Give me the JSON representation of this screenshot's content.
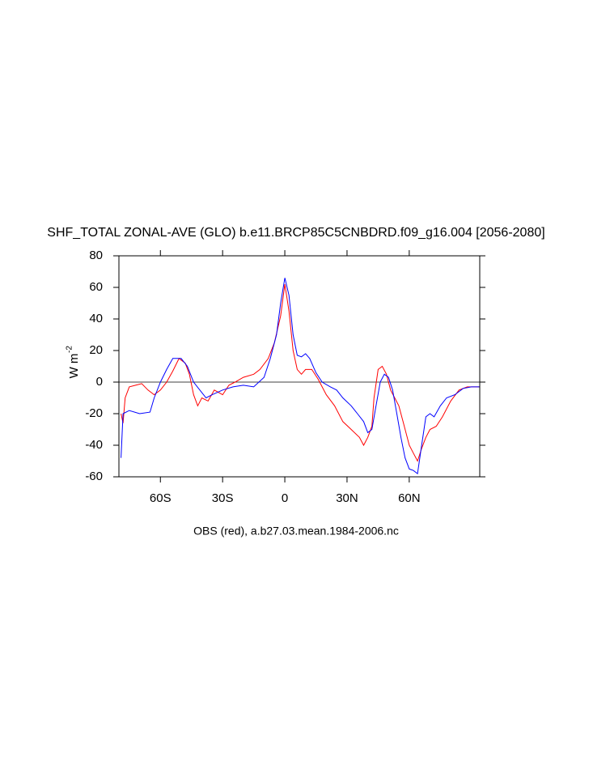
{
  "chart_data": {
    "type": "line",
    "title": "SHF_TOTAL ZONAL-AVE (GLO) b.e11.BRCP85C5CNBDRD.f09_g16.004 [2056-2080]",
    "subtitle": "OBS (red), a.b27.03.mean.1984-2006.nc",
    "y_label": {
      "text": "W m",
      "superscript": "-2"
    },
    "xlim": [
      -80,
      94
    ],
    "xticks": [
      {
        "value": -60,
        "label": "60S"
      },
      {
        "value": -30,
        "label": "30S"
      },
      0,
      {
        "value": 30,
        "label": "30N"
      },
      {
        "value": 60,
        "label": "60N"
      }
    ],
    "ylim": [
      -60,
      80
    ],
    "yticks": [
      -60,
      -40,
      -20,
      0,
      20,
      40,
      60,
      80
    ],
    "zero_line": true,
    "series": [
      {
        "color": "#ff0000",
        "x": [
          -79,
          -78,
          -77,
          -75,
          -72,
          -69,
          -66,
          -63,
          -60,
          -57,
          -54,
          -51,
          -48,
          -46,
          -44,
          -42,
          -40,
          -37,
          -34,
          -30,
          -27,
          -24,
          -20,
          -15,
          -12,
          -8,
          -5,
          -2,
          0,
          2,
          4,
          6,
          8,
          10,
          13,
          16,
          20,
          24,
          28,
          32,
          36,
          38,
          40,
          42,
          43,
          45,
          47,
          49,
          51,
          53,
          55,
          57,
          60,
          62,
          64,
          66,
          68,
          70,
          73,
          76,
          80,
          84,
          88,
          94
        ],
        "values": [
          -20,
          -26,
          -10,
          -3,
          -2,
          -1,
          -5,
          -8,
          -5,
          0,
          7,
          15,
          12,
          5,
          -8,
          -15,
          -10,
          -12,
          -5,
          -8,
          -2,
          0,
          3,
          5,
          8,
          15,
          25,
          42,
          62,
          45,
          20,
          8,
          5,
          8,
          8,
          2,
          -8,
          -15,
          -25,
          -30,
          -35,
          -40,
          -35,
          -28,
          -10,
          8,
          10,
          5,
          -5,
          -10,
          -15,
          -25,
          -40,
          -45,
          -50,
          -42,
          -35,
          -30,
          -28,
          -22,
          -12,
          -5,
          -3,
          -3
        ]
      },
      {
        "color": "#0000ff",
        "x": [
          -79,
          -78,
          -75,
          -70,
          -65,
          -63,
          -60,
          -57,
          -54,
          -50,
          -47,
          -44,
          -41,
          -38,
          -35,
          -30,
          -25,
          -20,
          -15,
          -10,
          -7,
          -4,
          -2,
          0,
          2,
          4,
          6,
          8,
          10,
          12,
          15,
          18,
          22,
          25,
          28,
          32,
          35,
          38,
          40,
          42,
          44,
          46,
          48,
          50,
          52,
          54,
          56,
          58,
          60,
          62,
          64,
          66,
          68,
          70,
          72,
          75,
          78,
          82,
          86,
          90,
          94
        ],
        "values": [
          -48,
          -20,
          -18,
          -20,
          -19,
          -10,
          0,
          8,
          15,
          15,
          10,
          0,
          -5,
          -10,
          -8,
          -5,
          -3,
          -2,
          -3,
          3,
          15,
          30,
          50,
          66,
          55,
          30,
          17,
          16,
          18,
          15,
          6,
          0,
          -3,
          -5,
          -10,
          -15,
          -20,
          -25,
          -32,
          -30,
          -15,
          0,
          5,
          3,
          -5,
          -20,
          -35,
          -48,
          -55,
          -56,
          -58,
          -40,
          -22,
          -20,
          -22,
          -15,
          -10,
          -8,
          -4,
          -3,
          -3
        ]
      }
    ]
  }
}
